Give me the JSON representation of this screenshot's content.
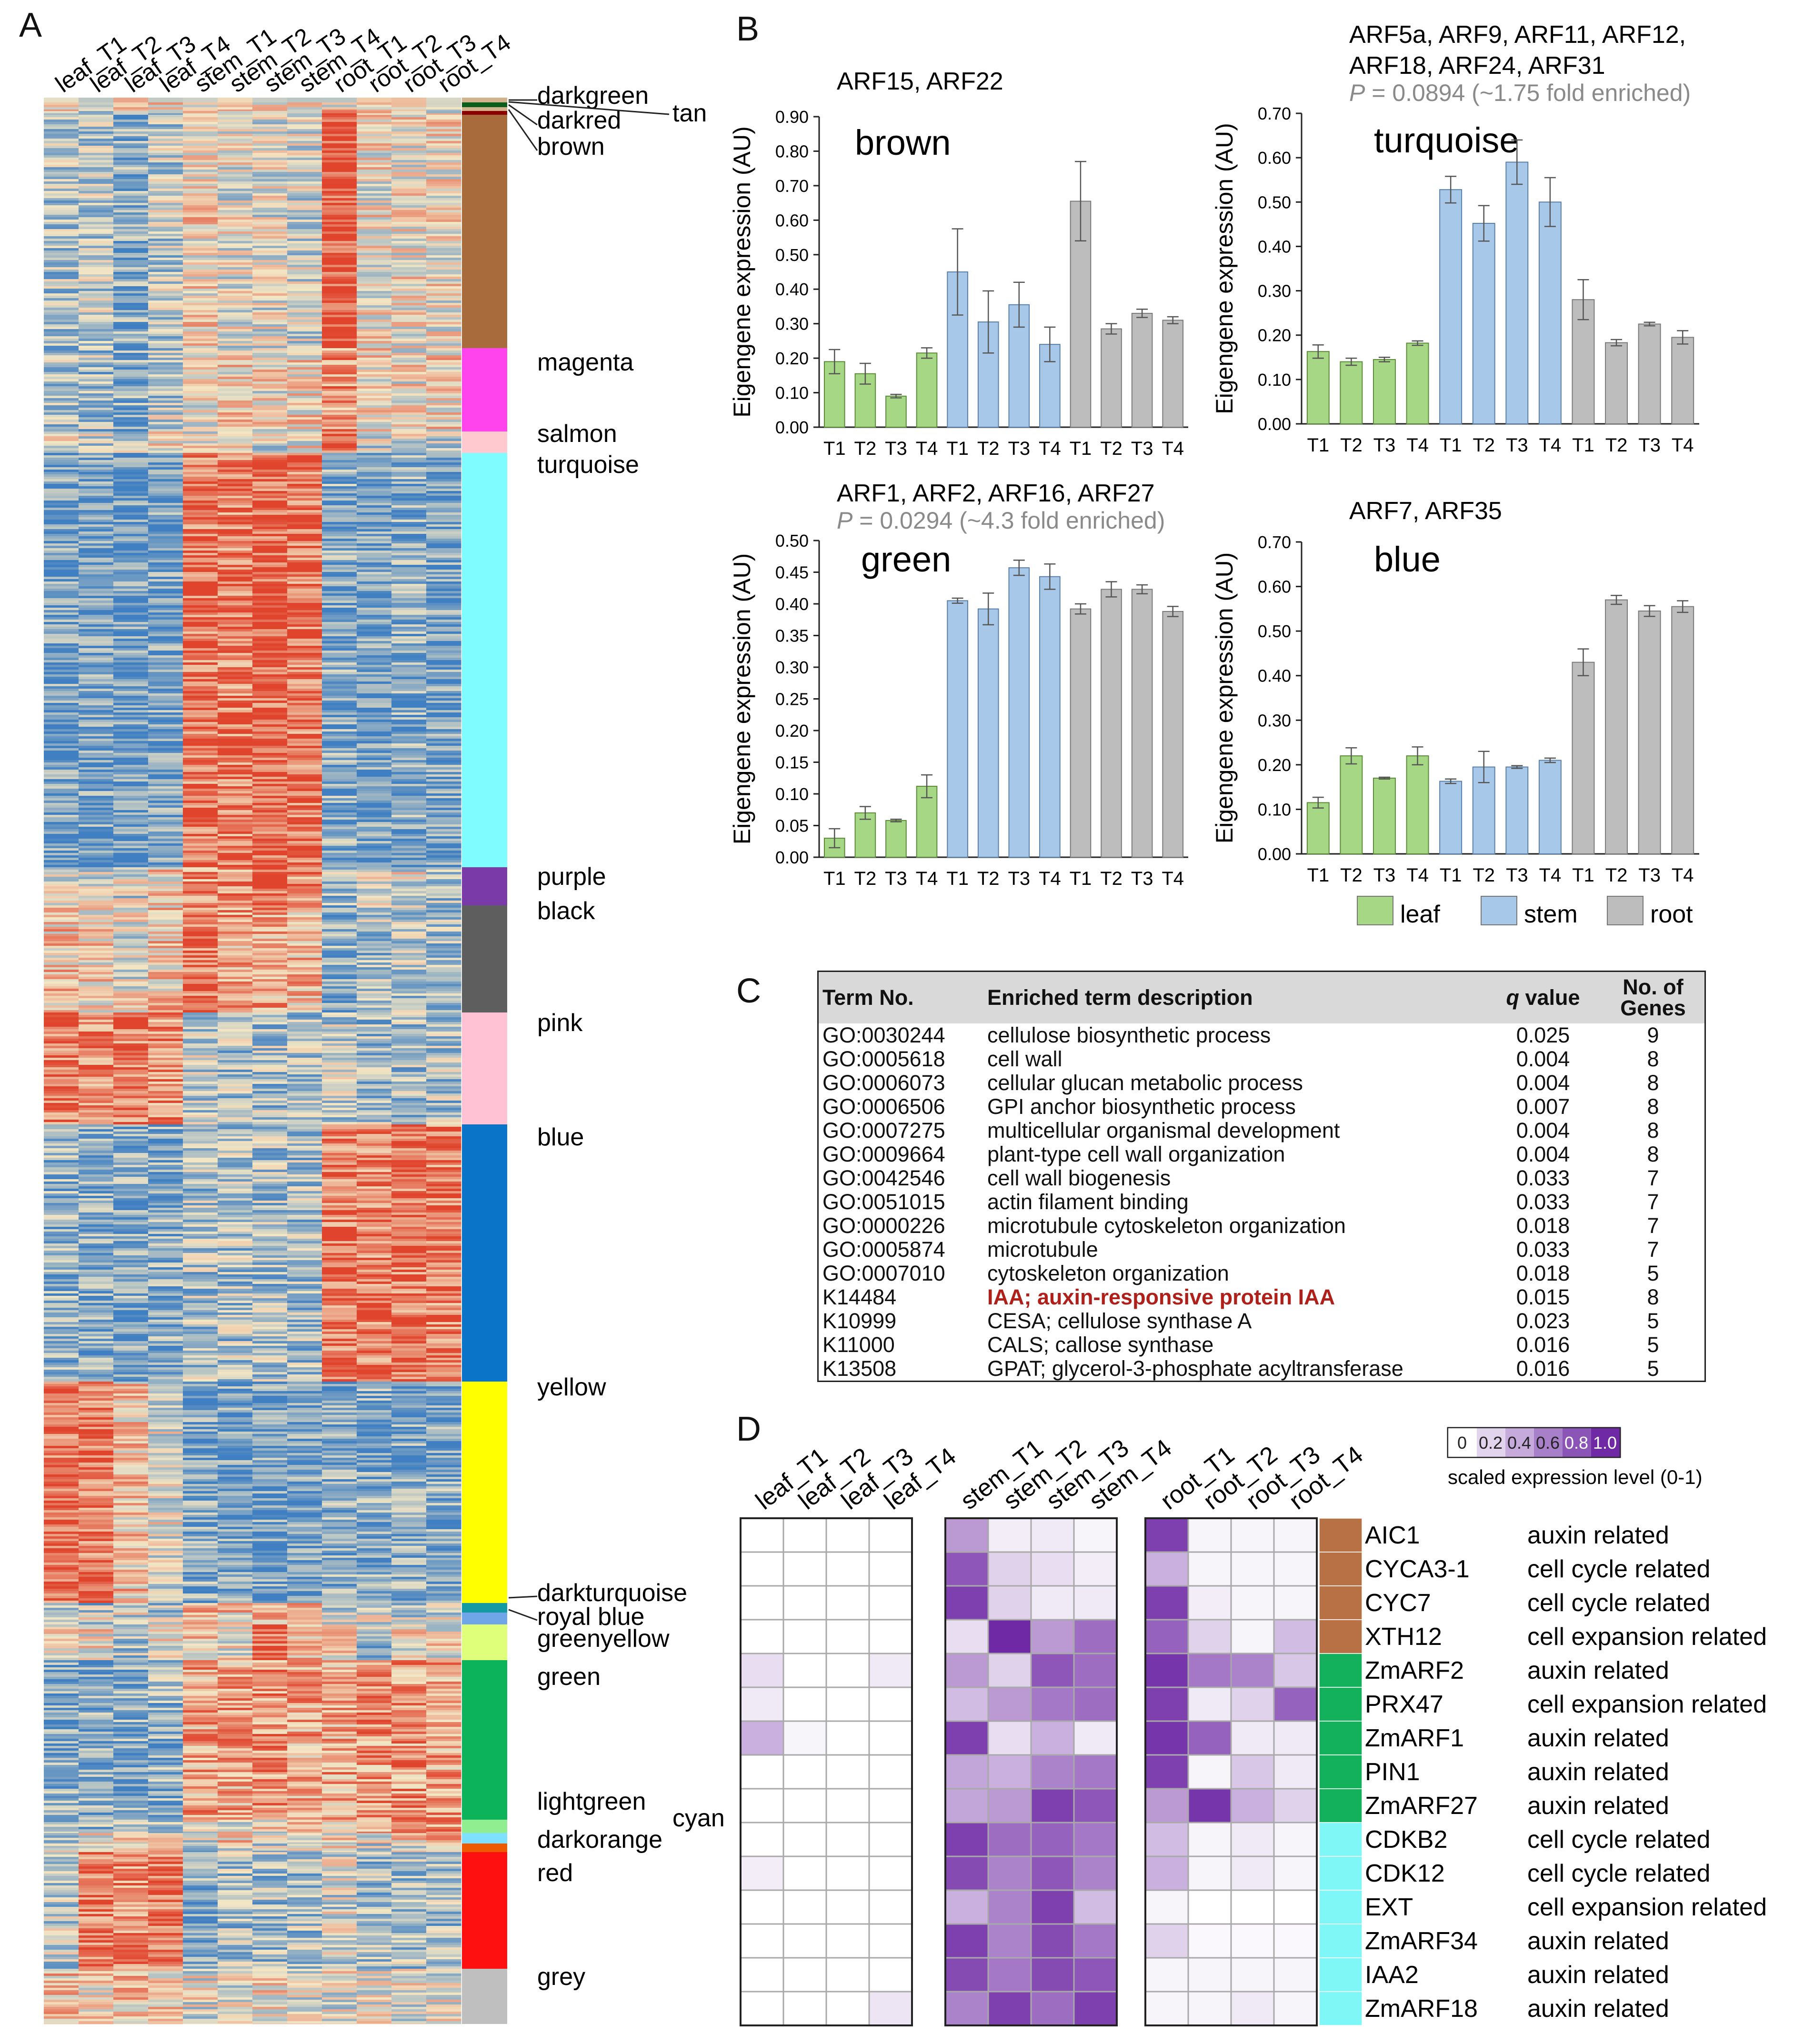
{
  "panels": {
    "A": "A",
    "B": "B",
    "C": "C",
    "D": "D"
  },
  "panelA": {
    "columns": [
      "leaf_T1",
      "leaf_T2",
      "leaf_T3",
      "leaf_T4",
      "stem_T1",
      "stem_T2",
      "stem_T3",
      "stem_T4",
      "root_T1",
      "root_T2",
      "root_T3",
      "root_T4"
    ],
    "modules": [
      {
        "name": "darkgreen",
        "color": "#0b5d1e",
        "label": "darkgreen"
      },
      {
        "name": "tan",
        "color": "#d2b48c",
        "label": "tan"
      },
      {
        "name": "darkred",
        "color": "#8b0000",
        "label": "darkred"
      },
      {
        "name": "brown",
        "color": "#a86b3c",
        "label": "brown"
      },
      {
        "name": "magenta",
        "color": "#ff44ee",
        "label": "magenta"
      },
      {
        "name": "salmon",
        "color": "#ffc9cf",
        "label": "salmon"
      },
      {
        "name": "turquoise",
        "color": "#7ffcff",
        "label": "turquoise"
      },
      {
        "name": "purple",
        "color": "#7a3aa7",
        "label": "purple"
      },
      {
        "name": "black",
        "color": "#5e5e5e",
        "label": "black"
      },
      {
        "name": "pink",
        "color": "#ffc1d3",
        "label": "pink"
      },
      {
        "name": "blue",
        "color": "#0a74c8",
        "label": "blue"
      },
      {
        "name": "yellow",
        "color": "#ffff00",
        "label": "yellow"
      },
      {
        "name": "darkturquoise",
        "color": "#149aa0",
        "label": "darkturquoise"
      },
      {
        "name": "royalblue",
        "color": "#6fa6e8",
        "label": "royal blue"
      },
      {
        "name": "greenyellow",
        "color": "#dfff7a",
        "label": "greenyellow"
      },
      {
        "name": "green",
        "color": "#0db35a",
        "label": "green"
      },
      {
        "name": "lightgreen",
        "color": "#90ee90",
        "label": "lightgreen"
      },
      {
        "name": "cyan",
        "color": "#7fdfff",
        "label": "cyan"
      },
      {
        "name": "darkorange",
        "color": "#ee5a00",
        "label": "darkorange"
      },
      {
        "name": "red",
        "color": "#ff1010",
        "label": "red"
      },
      {
        "name": "grey",
        "color": "#bfbfbf",
        "label": "grey"
      }
    ]
  },
  "chart_data": [
    {
      "type": "bar",
      "title": "brown",
      "genes": "ARF15, ARF22",
      "pvalue": "",
      "ylabel": "Eigengene expression (AU)",
      "ylim": [
        0,
        0.9
      ],
      "yticks": [
        "0.00",
        "0.10",
        "0.20",
        "0.30",
        "0.40",
        "0.50",
        "0.60",
        "0.70",
        "0.80",
        "0.90"
      ],
      "categories": [
        "T1",
        "T2",
        "T3",
        "T4",
        "T1",
        "T2",
        "T3",
        "T4",
        "T1",
        "T2",
        "T3",
        "T4"
      ],
      "groups": [
        "leaf",
        "leaf",
        "leaf",
        "leaf",
        "stem",
        "stem",
        "stem",
        "stem",
        "root",
        "root",
        "root",
        "root"
      ],
      "values": [
        0.19,
        0.155,
        0.09,
        0.215,
        0.45,
        0.305,
        0.355,
        0.24,
        0.655,
        0.285,
        0.33,
        0.31
      ],
      "errors": [
        0.035,
        0.03,
        0.005,
        0.015,
        0.125,
        0.09,
        0.065,
        0.05,
        0.115,
        0.015,
        0.012,
        0.01
      ]
    },
    {
      "type": "bar",
      "title": "turquoise",
      "genes": "ARF5a, ARF9, ARF11, ARF12,\nARF18, ARF24, ARF31",
      "pvalue": "P = 0.0894 (~1.75 fold enriched)",
      "ylabel": "Eigengene expression (AU)",
      "ylim": [
        0,
        0.7
      ],
      "yticks": [
        "0.00",
        "0.10",
        "0.20",
        "0.30",
        "0.40",
        "0.50",
        "0.60",
        "0.70"
      ],
      "categories": [
        "T1",
        "T2",
        "T3",
        "T4",
        "T1",
        "T2",
        "T3",
        "T4",
        "T1",
        "T2",
        "T3",
        "T4"
      ],
      "groups": [
        "leaf",
        "leaf",
        "leaf",
        "leaf",
        "stem",
        "stem",
        "stem",
        "stem",
        "root",
        "root",
        "root",
        "root"
      ],
      "values": [
        0.163,
        0.14,
        0.145,
        0.182,
        0.528,
        0.452,
        0.59,
        0.5,
        0.28,
        0.183,
        0.225,
        0.195
      ],
      "errors": [
        0.015,
        0.008,
        0.005,
        0.005,
        0.03,
        0.04,
        0.05,
        0.055,
        0.045,
        0.007,
        0.004,
        0.015
      ]
    },
    {
      "type": "bar",
      "title": "green",
      "genes": "ARF1, ARF2, ARF16, ARF27",
      "pvalue": "P = 0.0294 (~4.3 fold enriched)",
      "ylabel": "Eigengene expression (AU)",
      "ylim": [
        0,
        0.5
      ],
      "yticks": [
        "0.00",
        "0.05",
        "0.10",
        "0.15",
        "0.20",
        "0.25",
        "0.30",
        "0.35",
        "0.40",
        "0.45",
        "0.50"
      ],
      "categories": [
        "T1",
        "T2",
        "T3",
        "T4",
        "T1",
        "T2",
        "T3",
        "T4",
        "T1",
        "T2",
        "T3",
        "T4"
      ],
      "groups": [
        "leaf",
        "leaf",
        "leaf",
        "leaf",
        "stem",
        "stem",
        "stem",
        "stem",
        "root",
        "root",
        "root",
        "root"
      ],
      "values": [
        0.03,
        0.07,
        0.058,
        0.112,
        0.405,
        0.392,
        0.457,
        0.443,
        0.392,
        0.423,
        0.423,
        0.388
      ],
      "errors": [
        0.015,
        0.01,
        0.002,
        0.018,
        0.004,
        0.025,
        0.012,
        0.02,
        0.008,
        0.012,
        0.007,
        0.008
      ]
    },
    {
      "type": "bar",
      "title": "blue",
      "genes": "ARF7, ARF35",
      "pvalue": "",
      "ylabel": "Eigengene expression (AU)",
      "ylim": [
        0,
        0.7
      ],
      "yticks": [
        "0.00",
        "0.10",
        "0.20",
        "0.30",
        "0.40",
        "0.50",
        "0.60",
        "0.70"
      ],
      "categories": [
        "T1",
        "T2",
        "T3",
        "T4",
        "T1",
        "T2",
        "T3",
        "T4",
        "T1",
        "T2",
        "T3",
        "T4"
      ],
      "groups": [
        "leaf",
        "leaf",
        "leaf",
        "leaf",
        "stem",
        "stem",
        "stem",
        "stem",
        "root",
        "root",
        "root",
        "root"
      ],
      "values": [
        0.115,
        0.22,
        0.17,
        0.22,
        0.163,
        0.195,
        0.195,
        0.21,
        0.43,
        0.57,
        0.545,
        0.555
      ],
      "errors": [
        0.012,
        0.018,
        0.002,
        0.02,
        0.005,
        0.035,
        0.003,
        0.005,
        0.03,
        0.01,
        0.012,
        0.013
      ]
    }
  ],
  "legendB": {
    "items": [
      {
        "label": "leaf",
        "color": "#a6d785"
      },
      {
        "label": "stem",
        "color": "#a8c8ea"
      },
      {
        "label": "root",
        "color": "#bdbdbd"
      }
    ]
  },
  "goTable": {
    "headers": {
      "term": "Term No.",
      "desc": "Enriched term description",
      "q": "q value",
      "n1": "No. of",
      "n2": "Genes"
    },
    "rows": [
      {
        "term": "GO:0030244",
        "desc": "cellulose biosynthetic process",
        "q": "0.025",
        "n": "9",
        "hl": false
      },
      {
        "term": "GO:0005618",
        "desc": "cell wall",
        "q": "0.004",
        "n": "8",
        "hl": false
      },
      {
        "term": "GO:0006073",
        "desc": "cellular glucan metabolic process",
        "q": "0.004",
        "n": "8",
        "hl": false
      },
      {
        "term": "GO:0006506",
        "desc": "GPI anchor biosynthetic process",
        "q": "0.007",
        "n": "8",
        "hl": false
      },
      {
        "term": "GO:0007275",
        "desc": "multicellular organismal development",
        "q": "0.004",
        "n": "8",
        "hl": false
      },
      {
        "term": "GO:0009664",
        "desc": "plant-type cell wall organization",
        "q": "0.004",
        "n": "8",
        "hl": false
      },
      {
        "term": "GO:0042546",
        "desc": "cell wall biogenesis",
        "q": "0.033",
        "n": "7",
        "hl": false
      },
      {
        "term": "GO:0051015",
        "desc": "actin filament binding",
        "q": "0.033",
        "n": "7",
        "hl": false
      },
      {
        "term": "GO:0000226",
        "desc": "microtubule cytoskeleton organization",
        "q": "0.018",
        "n": "7",
        "hl": false
      },
      {
        "term": "GO:0005874",
        "desc": "microtubule",
        "q": "0.033",
        "n": "7",
        "hl": false
      },
      {
        "term": "GO:0007010",
        "desc": "cytoskeleton organization",
        "q": "0.018",
        "n": "5",
        "hl": false
      },
      {
        "term": "K14484",
        "desc": "IAA; auxin-responsive protein IAA",
        "q": "0.015",
        "n": "8",
        "hl": true
      },
      {
        "term": "K10999",
        "desc": "CESA; cellulose synthase A",
        "q": "0.023",
        "n": "5",
        "hl": false
      },
      {
        "term": "K11000",
        "desc": "CALS; callose synthase",
        "q": "0.016",
        "n": "5",
        "hl": false
      },
      {
        "term": "K13508",
        "desc": "GPAT; glycerol-3-phosphate acyltransferase",
        "q": "0.016",
        "n": "5",
        "hl": false
      }
    ]
  },
  "panelD": {
    "columnGroups": [
      [
        "leaf_T1",
        "leaf_T2",
        "leaf_T3",
        "leaf_T4"
      ],
      [
        "stem_T1",
        "stem_T2",
        "stem_T3",
        "stem_T4"
      ],
      [
        "root_T1",
        "root_T2",
        "root_T3",
        "root_T4"
      ]
    ],
    "scale": {
      "ticks": [
        "0",
        "0.2",
        "0.4",
        "0.6",
        "0.8",
        "1.0"
      ],
      "label": "scaled expression level (0-1)"
    },
    "genes": [
      {
        "name": "AIC1",
        "cat": "auxin related",
        "module": "#b87045",
        "values": [
          0,
          0,
          0,
          0,
          0.45,
          0.08,
          0.1,
          0.05,
          0.85,
          0.05,
          0.05,
          0.05
        ]
      },
      {
        "name": "CYCA3-1",
        "cat": "cell cycle related",
        "module": "#b87045",
        "values": [
          0,
          0,
          0,
          0,
          0.75,
          0.2,
          0.15,
          0.08,
          0.35,
          0.05,
          0.05,
          0.05
        ]
      },
      {
        "name": "CYC7",
        "cat": "cell cycle related",
        "module": "#b87045",
        "values": [
          0,
          0,
          0,
          0,
          0.85,
          0.2,
          0.1,
          0.1,
          0.85,
          0.08,
          0.05,
          0.05
        ]
      },
      {
        "name": "XTH12",
        "cat": "cell expansion related",
        "module": "#b87045",
        "values": [
          0,
          0,
          0,
          0,
          0.15,
          0.95,
          0.45,
          0.65,
          0.7,
          0.2,
          0.05,
          0.3
        ]
      },
      {
        "name": "ZmARF2",
        "cat": "auxin related",
        "module": "#13b15c",
        "values": [
          0.15,
          0,
          0,
          0.1,
          0.45,
          0.2,
          0.75,
          0.65,
          0.9,
          0.6,
          0.55,
          0.25
        ]
      },
      {
        "name": "PRX47",
        "cat": "cell expansion related",
        "module": "#13b15c",
        "values": [
          0.1,
          0,
          0,
          0,
          0.3,
          0.45,
          0.6,
          0.65,
          0.85,
          0.1,
          0.2,
          0.7
        ]
      },
      {
        "name": "ZmARF1",
        "cat": "auxin related",
        "module": "#13b15c",
        "values": [
          0.35,
          0.05,
          0,
          0,
          0.85,
          0.15,
          0.35,
          0.1,
          0.9,
          0.7,
          0.1,
          0.1
        ]
      },
      {
        "name": "PIN1",
        "cat": "auxin related",
        "module": "#13b15c",
        "values": [
          0,
          0,
          0,
          0,
          0.4,
          0.35,
          0.55,
          0.6,
          0.85,
          0.05,
          0.25,
          0.1
        ]
      },
      {
        "name": "ZmARF27",
        "cat": "auxin related",
        "module": "#13b15c",
        "values": [
          0,
          0,
          0,
          0,
          0.4,
          0.45,
          0.85,
          0.75,
          0.45,
          0.9,
          0.35,
          0.2
        ]
      },
      {
        "name": "CDKB2",
        "cat": "cell cycle related",
        "module": "#7ff7f7",
        "values": [
          0,
          0,
          0,
          0,
          0.85,
          0.65,
          0.7,
          0.6,
          0.3,
          0.05,
          0.1,
          0.05
        ]
      },
      {
        "name": "CDK12",
        "cat": "cell cycle related",
        "module": "#7ff7f7",
        "values": [
          0.08,
          0,
          0,
          0,
          0.8,
          0.55,
          0.75,
          0.55,
          0.35,
          0.05,
          0.1,
          0.05
        ]
      },
      {
        "name": "EXT",
        "cat": "cell expansion related",
        "module": "#7ff7f7",
        "values": [
          0,
          0,
          0,
          0,
          0.35,
          0.55,
          0.85,
          0.3,
          0.05,
          0,
          0,
          0
        ]
      },
      {
        "name": "ZmARF34",
        "cat": "auxin related",
        "module": "#7ff7f7",
        "values": [
          0,
          0,
          0,
          0,
          0.85,
          0.55,
          0.8,
          0.6,
          0.2,
          0.03,
          0.03,
          0.03
        ]
      },
      {
        "name": "IAA2",
        "cat": "auxin related",
        "module": "#7ff7f7",
        "values": [
          0,
          0,
          0,
          0,
          0.8,
          0.6,
          0.8,
          0.75,
          0.05,
          0.05,
          0.05,
          0.05
        ]
      },
      {
        "name": "ZmARF18",
        "cat": "auxin related",
        "module": "#7ff7f7",
        "values": [
          0,
          0,
          0,
          0.12,
          0.55,
          0.85,
          0.65,
          0.85,
          0.05,
          0.05,
          0.1,
          0.05
        ]
      }
    ]
  }
}
